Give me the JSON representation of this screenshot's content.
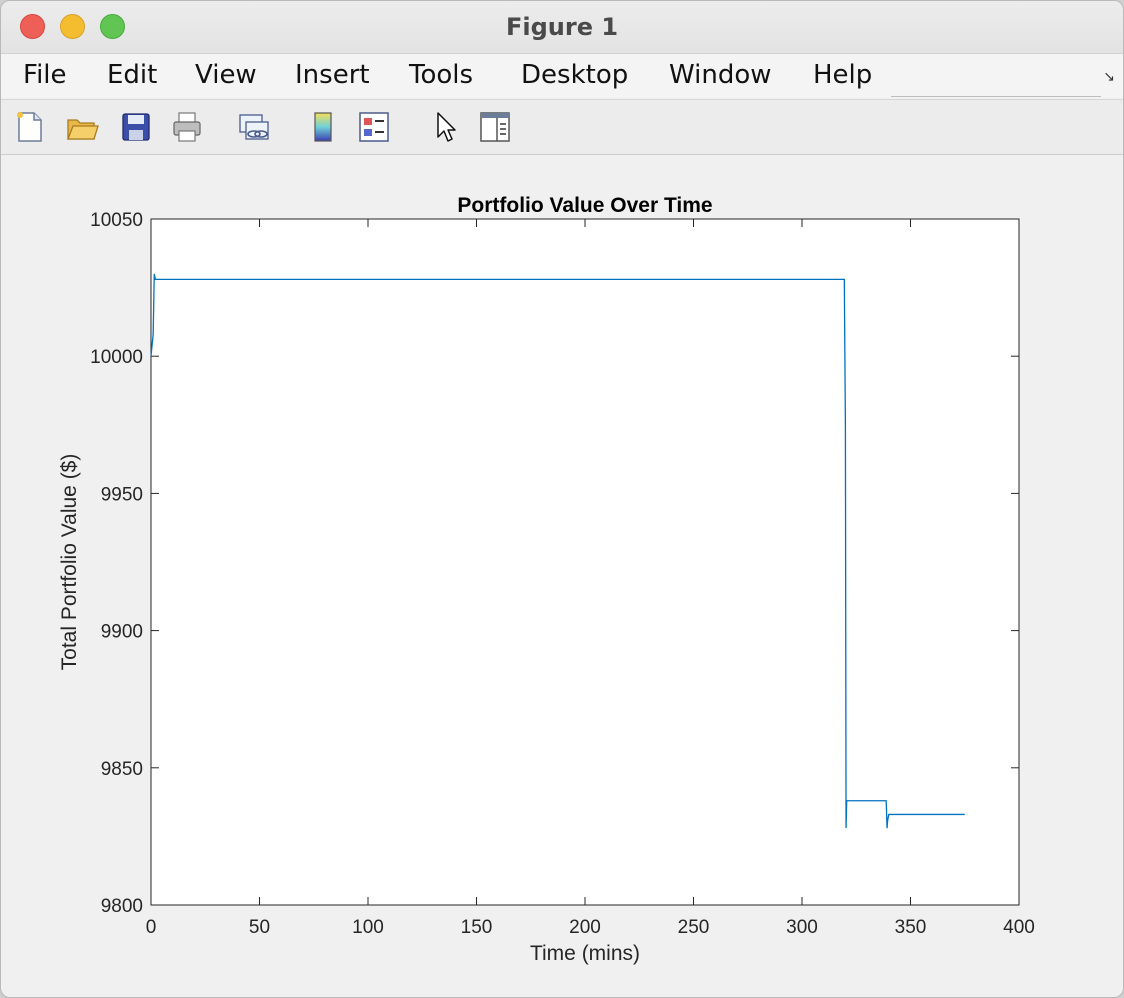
{
  "window": {
    "title": "Figure 1"
  },
  "menu": {
    "items": [
      "File",
      "Edit",
      "View",
      "Insert",
      "Tools",
      "Desktop",
      "Window",
      "Help"
    ]
  },
  "toolbar": {
    "buttons": [
      {
        "name": "new-figure",
        "icon": "new-file-icon"
      },
      {
        "name": "open-file",
        "icon": "folder-icon"
      },
      {
        "name": "save-figure",
        "icon": "floppy-disk-icon"
      },
      {
        "name": "print-figure",
        "icon": "printer-icon"
      },
      {
        "name": "link-plot",
        "icon": "link-icon"
      },
      {
        "name": "insert-colorbar",
        "icon": "colorbar-icon"
      },
      {
        "name": "insert-legend",
        "icon": "legend-icon"
      },
      {
        "name": "edit-plot",
        "icon": "pointer-arrow-icon"
      },
      {
        "name": "property-inspector",
        "icon": "panel-icon"
      }
    ]
  },
  "colors": {
    "line": "#0072BD",
    "axes_bg": "#ffffff",
    "figure_bg": "#f0f0f0"
  },
  "chart_data": {
    "type": "line",
    "title": "Portfolio Value Over Time",
    "xlabel": "Time (mins)",
    "ylabel": "Total Portfolio Value ($)",
    "xlim": [
      0,
      400
    ],
    "ylim": [
      9800,
      10050
    ],
    "xticks": [
      0,
      50,
      100,
      150,
      200,
      250,
      300,
      350,
      400
    ],
    "yticks": [
      9800,
      9850,
      9900,
      9950,
      10000,
      10050
    ],
    "xtick_labels": [
      "0",
      "50",
      "100",
      "150",
      "200",
      "250",
      "300",
      "350",
      "400"
    ],
    "ytick_labels": [
      "9800",
      "9850",
      "9900",
      "9950",
      "10000",
      "10050"
    ],
    "grid": false,
    "series": [
      {
        "x": [
          0,
          1,
          1.5,
          2,
          3,
          5,
          50,
          150,
          250,
          300,
          319.5,
          320,
          320.3,
          320.6,
          321,
          338.8,
          339.2,
          339.5,
          340,
          341,
          360,
          375
        ],
        "y": [
          10000,
          10008,
          10030,
          10028,
          10028,
          10028,
          10028,
          10028,
          10028,
          10028,
          10028,
          9975,
          9828,
          9838,
          9838,
          9838,
          9828,
          9831,
          9833,
          9833,
          9833,
          9833
        ]
      }
    ]
  }
}
